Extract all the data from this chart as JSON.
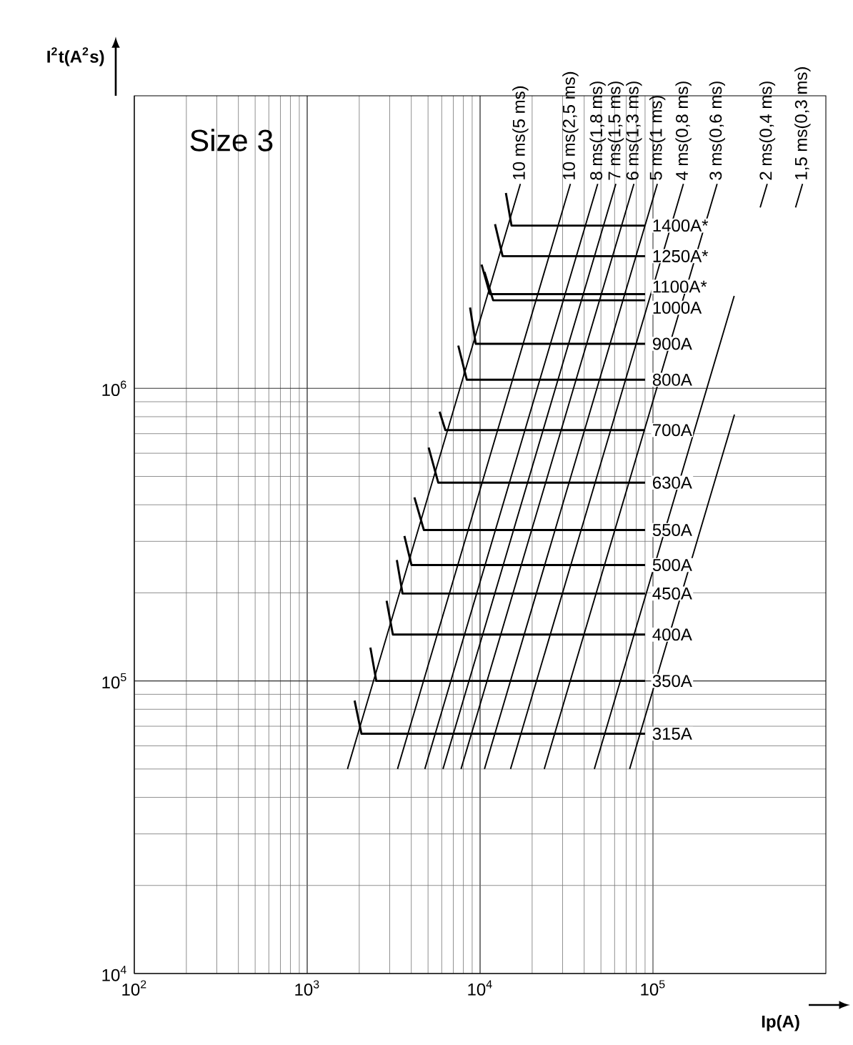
{
  "chart_data": {
    "type": "line",
    "log": "xy",
    "grid": true,
    "marker": "none",
    "xlabel": "Ip(A)",
    "ylabel": "I$^{2}$t(A$^{2}$s)",
    "annotations": [
      "Size 3"
    ],
    "xlim": [
      100,
      1000000
    ],
    "ylim": [
      10000,
      10000000
    ],
    "xticks": [
      {
        "value": 100,
        "label": "10$^{2}$"
      },
      {
        "value": 1000,
        "label": "10$^{3}$"
      },
      {
        "value": 10000,
        "label": "10$^{4}$"
      },
      {
        "value": 100000,
        "label": "10$^{5}$"
      }
    ],
    "yticks": [
      {
        "value": 10000,
        "label": "10$^{4}$"
      },
      {
        "value": 100000,
        "label": "10$^{5}$"
      },
      {
        "value": 1000000,
        "label": "10$^{6}$"
      }
    ],
    "series": [
      {
        "name": "10 ms(5 ms)",
        "color": "#000000",
        "x": [
          1710,
          17100
        ],
        "values": [
          50000,
          5000000
        ]
      },
      {
        "name": "10 ms(2,5 ms)",
        "color": "#000000",
        "x": [
          3330,
          33300
        ],
        "values": [
          50000,
          5000000
        ]
      },
      {
        "name": "8 ms(1,8 ms)",
        "color": "#000000",
        "x": [
          4790,
          47900
        ],
        "values": [
          50000,
          5000000
        ]
      },
      {
        "name": "7 ms(1,5 ms)",
        "color": "#000000",
        "x": [
          6100,
          61000
        ],
        "values": [
          50000,
          5000000
        ]
      },
      {
        "name": "6 ms(1,3 ms)",
        "color": "#000000",
        "x": [
          7760,
          77600
        ],
        "values": [
          50000,
          5000000
        ]
      },
      {
        "name": "5 ms(1 ms)",
        "color": "#000000",
        "x": [
          10600,
          106000
        ],
        "values": [
          50000,
          5000000
        ]
      },
      {
        "name": "4 ms(0,8 ms)",
        "color": "#000000",
        "x": [
          15000,
          150000
        ],
        "values": [
          50000,
          5000000
        ]
      },
      {
        "name": "3 ms(0,6 ms)",
        "color": "#000000",
        "x": [
          23500,
          235000
        ],
        "values": [
          50000,
          5000000
        ]
      },
      {
        "name": "2 ms(0,4 ms)",
        "color": "#000000",
        "x": [
          45800,
          295000,
          350000,
          417000,
          458000
        ],
        "values": [
          50000,
          2070000,
          null,
          4150000,
          5000000
        ]
      },
      {
        "name": "1,5 ms(0,3 ms)",
        "color": "#000000",
        "x": [
          73300,
          296000,
          450000,
          668000,
          733000
        ],
        "values": [
          50000,
          813000,
          null,
          4150000,
          5000000
        ]
      },
      {
        "name": "1400A*",
        "color": "#000000",
        "x": [
          14100,
          15200,
          18400,
          90000
        ],
        "values": [
          4650000,
          3600000,
          3600000,
          3600000
        ]
      },
      {
        "name": "1250A*",
        "color": "#000000",
        "x": [
          12200,
          13500,
          16300,
          90000
        ],
        "values": [
          3640000,
          2830000,
          2830000,
          2830000
        ]
      },
      {
        "name": "1100A*",
        "color": "#000000",
        "x": [
          10200,
          11400,
          13800,
          90000
        ],
        "values": [
          2650000,
          2100000,
          2100000,
          2100000
        ]
      },
      {
        "name": "1000A",
        "color": "#000000",
        "x": [
          10600,
          11900,
          14300,
          90000
        ],
        "values": [
          2500000,
          2000000,
          2000000,
          2000000
        ]
      },
      {
        "name": "900A",
        "color": "#000000",
        "x": [
          8750,
          9440,
          11400,
          90000
        ],
        "values": [
          1890000,
          1420000,
          1420000,
          1420000
        ]
      },
      {
        "name": "800A",
        "color": "#000000",
        "x": [
          7480,
          8380,
          10100,
          90000
        ],
        "values": [
          1400000,
          1070000,
          1070000,
          1070000
        ]
      },
      {
        "name": "700A",
        "color": "#000000",
        "x": [
          5830,
          6300,
          7620,
          90000
        ],
        "values": [
          832000,
          720000,
          720000,
          720000
        ]
      },
      {
        "name": "630A",
        "color": "#000000",
        "x": [
          5040,
          5730,
          6930,
          90000
        ],
        "values": [
          628000,
          476000,
          476000,
          476000
        ]
      },
      {
        "name": "550A",
        "color": "#000000",
        "x": [
          4170,
          4730,
          5730,
          90000
        ],
        "values": [
          424000,
          328000,
          328000,
          328000
        ]
      },
      {
        "name": "500A",
        "color": "#000000",
        "x": [
          3650,
          4010,
          4850,
          90000
        ],
        "values": [
          313000,
          249000,
          249000,
          249000
        ]
      },
      {
        "name": "450A",
        "color": "#000000",
        "x": [
          3300,
          3560,
          4300,
          90000
        ],
        "values": [
          259000,
          199000,
          199000,
          199000
        ]
      },
      {
        "name": "400A",
        "color": "#000000",
        "x": [
          2880,
          3130,
          3790,
          90000
        ],
        "values": [
          188000,
          144000,
          144000,
          144000
        ]
      },
      {
        "name": "350A",
        "color": "#000000",
        "x": [
          2320,
          2510,
          3030,
          90000
        ],
        "values": [
          130000,
          100000,
          100000,
          100000
        ]
      },
      {
        "name": "315A",
        "color": "#000000",
        "x": [
          1880,
          2060,
          2490,
          90000
        ],
        "values": [
          85700,
          66000,
          66000,
          66000
        ]
      }
    ]
  }
}
